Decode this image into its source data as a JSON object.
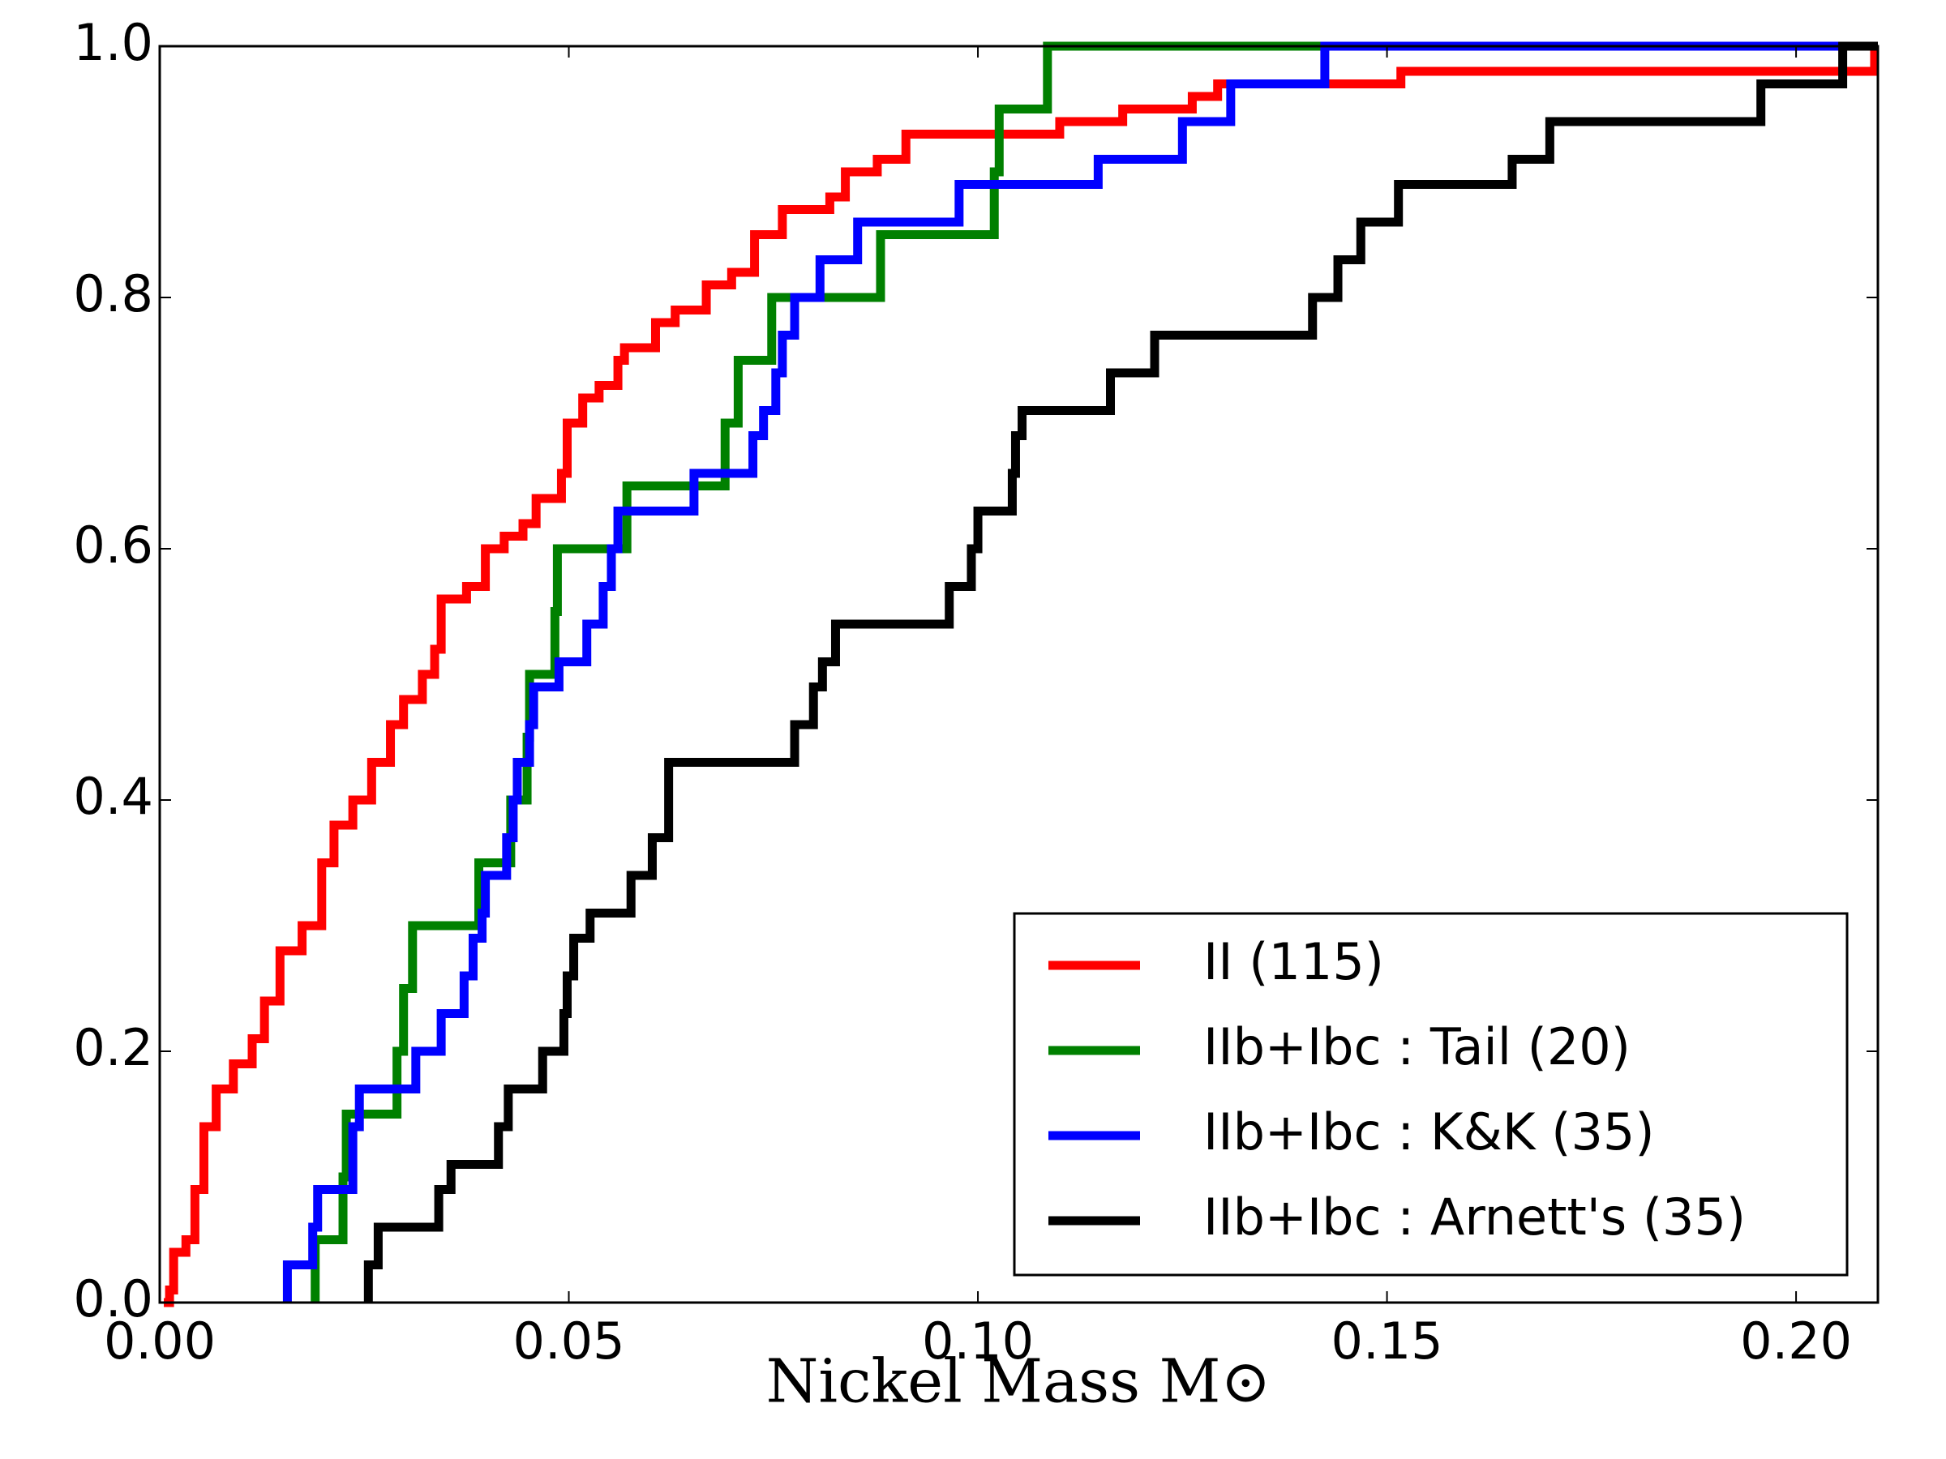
{
  "chart_data": {
    "type": "step",
    "xlabel": "Nickel Mass M⊙",
    "xlim": [
      0,
      0.21
    ],
    "ylim": [
      0,
      1
    ],
    "xticks": [
      {
        "value": 0,
        "label": "0.00"
      },
      {
        "value": 0.05,
        "label": "0.05"
      },
      {
        "value": 0.1,
        "label": "0.10"
      },
      {
        "value": 0.15,
        "label": "0.15"
      },
      {
        "value": 0.2,
        "label": "0.20"
      }
    ],
    "yticks": [
      {
        "value": 0,
        "label": "0.0"
      },
      {
        "value": 0.2,
        "label": "0.2"
      },
      {
        "value": 0.4,
        "label": "0.4"
      },
      {
        "value": 0.6,
        "label": "0.6"
      },
      {
        "value": 0.8,
        "label": "0.8"
      },
      {
        "value": 1,
        "label": "1.0"
      }
    ],
    "legend": "lower right",
    "series": [
      {
        "name": "II (115)",
        "color": "#ff0000",
        "x": [
          0.0005,
          0.0012,
          0.0017,
          0.0032,
          0.0043,
          0.0054,
          0.0069,
          0.009,
          0.0113,
          0.0128,
          0.0147,
          0.0174,
          0.0198,
          0.0213,
          0.0236,
          0.0259,
          0.0282,
          0.0298,
          0.0321,
          0.0336,
          0.0344,
          0.0375,
          0.0398,
          0.0421,
          0.0444,
          0.046,
          0.0491,
          0.0498,
          0.0517,
          0.0537,
          0.056,
          0.0568,
          0.0606,
          0.063,
          0.0668,
          0.0699,
          0.0727,
          0.0761,
          0.0819,
          0.0838,
          0.0877,
          0.0912,
          0.1008,
          0.11,
          0.1177,
          0.1262,
          0.1293,
          0.1517,
          0.2096
        ],
        "values": [
          0.0,
          0.01,
          0.04,
          0.05,
          0.09,
          0.14,
          0.17,
          0.19,
          0.21,
          0.24,
          0.28,
          0.3,
          0.35,
          0.38,
          0.4,
          0.43,
          0.46,
          0.48,
          0.5,
          0.52,
          0.56,
          0.57,
          0.6,
          0.61,
          0.62,
          0.64,
          0.66,
          0.7,
          0.72,
          0.73,
          0.75,
          0.76,
          0.78,
          0.79,
          0.81,
          0.82,
          0.85,
          0.87,
          0.88,
          0.9,
          0.91,
          0.93,
          0.93,
          0.94,
          0.95,
          0.96,
          0.97,
          0.98,
          1.0
        ]
      },
      {
        "name": "IIb+Ibc : Tail (20)",
        "color": "#008000",
        "x": [
          0.019,
          0.0224,
          0.0228,
          0.029,
          0.0298,
          0.0309,
          0.039,
          0.0429,
          0.0449,
          0.0452,
          0.0483,
          0.0486,
          0.0571,
          0.0691,
          0.0707,
          0.0748,
          0.0881,
          0.102,
          0.1026,
          0.1085
        ],
        "values": [
          0.05,
          0.1,
          0.15,
          0.2,
          0.25,
          0.3,
          0.35,
          0.4,
          0.45,
          0.5,
          0.55,
          0.6,
          0.65,
          0.7,
          0.75,
          0.8,
          0.85,
          0.9,
          0.95,
          1.0
        ]
      },
      {
        "name": "IIb+Ibc : K&K (35)",
        "color": "#0000ff",
        "x": [
          0.0156,
          0.0187,
          0.0193,
          0.0236,
          0.0244,
          0.0313,
          0.0344,
          0.0372,
          0.0383,
          0.0394,
          0.0398,
          0.0424,
          0.0432,
          0.0437,
          0.0452,
          0.0457,
          0.0488,
          0.0522,
          0.0542,
          0.0552,
          0.056,
          0.0653,
          0.0725,
          0.0738,
          0.0753,
          0.0761,
          0.0776,
          0.0807,
          0.0853,
          0.0977,
          0.1147,
          0.125,
          0.1309,
          0.1424
        ],
        "values": [
          0.03,
          0.06,
          0.09,
          0.14,
          0.17,
          0.2,
          0.23,
          0.26,
          0.29,
          0.31,
          0.34,
          0.37,
          0.4,
          0.43,
          0.46,
          0.49,
          0.51,
          0.54,
          0.57,
          0.6,
          0.63,
          0.66,
          0.69,
          0.71,
          0.74,
          0.77,
          0.8,
          0.83,
          0.86,
          0.89,
          0.91,
          0.94,
          0.97,
          1.0
        ]
      },
      {
        "name": "IIb+Ibc : Arnett's (35)",
        "color": "#000000",
        "x": [
          0.0255,
          0.0267,
          0.0341,
          0.0356,
          0.0414,
          0.0426,
          0.0468,
          0.0494,
          0.0498,
          0.0506,
          0.0526,
          0.0576,
          0.0602,
          0.0622,
          0.0776,
          0.0799,
          0.081,
          0.0826,
          0.0965,
          0.0992,
          0.1,
          0.1042,
          0.1046,
          0.1054,
          0.1162,
          0.1216,
          0.1409,
          0.144,
          0.1468,
          0.1514,
          0.1653,
          0.1699,
          0.1957,
          0.2057
        ],
        "values": [
          0.03,
          0.06,
          0.09,
          0.11,
          0.14,
          0.17,
          0.2,
          0.23,
          0.26,
          0.29,
          0.31,
          0.34,
          0.37,
          0.43,
          0.46,
          0.49,
          0.51,
          0.54,
          0.57,
          0.6,
          0.63,
          0.66,
          0.69,
          0.71,
          0.74,
          0.77,
          0.8,
          0.83,
          0.86,
          0.89,
          0.91,
          0.94,
          0.97,
          1.0
        ]
      }
    ]
  }
}
